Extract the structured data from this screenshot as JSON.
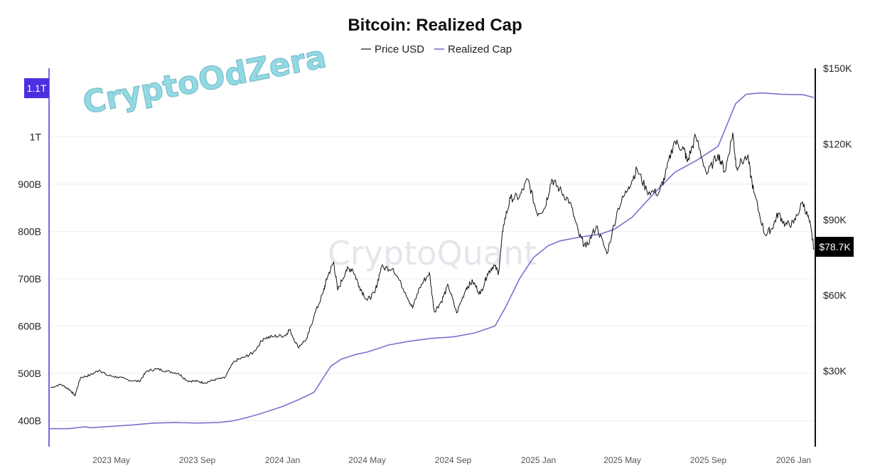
{
  "watermarks": {
    "corner": "CryptoOdZera",
    "center": "CryptoQuant"
  },
  "colors": {
    "price": "#111111",
    "realized_cap": "#7b70cf",
    "left_axis": "#7b68d9",
    "left_badge": "#4b2fe0",
    "right_badge": "#000000"
  },
  "chart_data": {
    "type": "line",
    "title": "Bitcoin: Realized Cap",
    "legend": {
      "placement": "top-center",
      "entries": [
        "Price USD",
        "Realized Cap"
      ]
    },
    "x_tick_labels": [
      "2023 May",
      "2023 Sep",
      "2024 Jan",
      "2024 May",
      "2024 Sep",
      "2025 Jan",
      "2025 May",
      "2025 Sep",
      "2026 Jan"
    ],
    "x_tick_dates": [
      "2023-05-01",
      "2023-09-01",
      "2024-01-01",
      "2024-05-01",
      "2024-09-01",
      "2025-01-01",
      "2025-05-01",
      "2025-09-01",
      "2026-01-01"
    ],
    "x_range": [
      "2023-02-01",
      "2026-02-01"
    ],
    "left_axis": {
      "series": "Realized Cap",
      "range": [
        345,
        1145
      ],
      "unit": "USD billions",
      "ticks": [
        400,
        500,
        600,
        700,
        800,
        900,
        1000
      ],
      "tick_labels": [
        "400B",
        "500B",
        "600B",
        "700B",
        "800B",
        "900B",
        "1T"
      ],
      "current_value_label": "1.1T"
    },
    "right_axis": {
      "series": "Price USD",
      "range": [
        0,
        150000
      ],
      "ticks": [
        30000,
        60000,
        90000,
        120000,
        150000
      ],
      "tick_labels": [
        "$30K",
        "$60K",
        "$90K",
        "$120K",
        "$150K"
      ],
      "current_value_label": "$78.7K"
    },
    "grid": true,
    "series": [
      {
        "name": "Price USD",
        "axis": "right",
        "points": [
          [
            "2023-02-03",
            23400
          ],
          [
            "2023-02-18",
            24700
          ],
          [
            "2023-03-03",
            22500
          ],
          [
            "2023-03-10",
            20200
          ],
          [
            "2023-03-18",
            27400
          ],
          [
            "2023-04-01",
            28400
          ],
          [
            "2023-04-14",
            30400
          ],
          [
            "2023-04-25",
            28300
          ],
          [
            "2023-05-10",
            27600
          ],
          [
            "2023-05-25",
            26500
          ],
          [
            "2023-06-10",
            25800
          ],
          [
            "2023-06-21",
            30000
          ],
          [
            "2023-07-05",
            30800
          ],
          [
            "2023-07-20",
            29900
          ],
          [
            "2023-08-05",
            29100
          ],
          [
            "2023-08-18",
            26100
          ],
          [
            "2023-09-01",
            25900
          ],
          [
            "2023-09-12",
            25300
          ],
          [
            "2023-09-25",
            26500
          ],
          [
            "2023-10-10",
            27200
          ],
          [
            "2023-10-24",
            33900
          ],
          [
            "2023-11-08",
            35500
          ],
          [
            "2023-11-20",
            37300
          ],
          [
            "2023-12-05",
            43000
          ],
          [
            "2023-12-20",
            43700
          ],
          [
            "2024-01-05",
            44100
          ],
          [
            "2024-01-11",
            46500
          ],
          [
            "2024-01-23",
            39500
          ],
          [
            "2024-02-05",
            42800
          ],
          [
            "2024-02-15",
            51800
          ],
          [
            "2024-02-28",
            61000
          ],
          [
            "2024-03-05",
            67200
          ],
          [
            "2024-03-14",
            73100
          ],
          [
            "2024-03-20",
            62000
          ],
          [
            "2024-04-01",
            70000
          ],
          [
            "2024-04-10",
            70500
          ],
          [
            "2024-04-20",
            63500
          ],
          [
            "2024-05-01",
            58000
          ],
          [
            "2024-05-12",
            61000
          ],
          [
            "2024-05-21",
            71000
          ],
          [
            "2024-06-07",
            70700
          ],
          [
            "2024-06-25",
            61000
          ],
          [
            "2024-07-05",
            55000
          ],
          [
            "2024-07-15",
            63000
          ],
          [
            "2024-07-29",
            69000
          ],
          [
            "2024-08-05",
            53500
          ],
          [
            "2024-08-15",
            57500
          ],
          [
            "2024-08-25",
            64000
          ],
          [
            "2024-09-06",
            53000
          ],
          [
            "2024-09-20",
            63000
          ],
          [
            "2024-09-29",
            65500
          ],
          [
            "2024-10-10",
            60500
          ],
          [
            "2024-10-20",
            68500
          ],
          [
            "2024-10-29",
            72000
          ],
          [
            "2024-11-05",
            69000
          ],
          [
            "2024-11-12",
            88000
          ],
          [
            "2024-11-22",
            98500
          ],
          [
            "2024-12-05",
            99000
          ],
          [
            "2024-12-17",
            106000
          ],
          [
            "2024-12-30",
            92500
          ],
          [
            "2025-01-10",
            94500
          ],
          [
            "2025-01-20",
            106000
          ],
          [
            "2025-01-31",
            102000
          ],
          [
            "2025-02-15",
            97000
          ],
          [
            "2025-02-28",
            84000
          ],
          [
            "2025-03-10",
            79000
          ],
          [
            "2025-03-25",
            87500
          ],
          [
            "2025-04-09",
            76500
          ],
          [
            "2025-04-25",
            94500
          ],
          [
            "2025-05-10",
            103000
          ],
          [
            "2025-05-22",
            110000
          ],
          [
            "2025-06-05",
            101500
          ],
          [
            "2025-06-22",
            100500
          ],
          [
            "2025-07-01",
            107000
          ],
          [
            "2025-07-14",
            121000
          ],
          [
            "2025-07-28",
            118000
          ],
          [
            "2025-08-02",
            113000
          ],
          [
            "2025-08-14",
            123000
          ],
          [
            "2025-08-30",
            108000
          ],
          [
            "2025-09-15",
            116000
          ],
          [
            "2025-09-25",
            109000
          ],
          [
            "2025-10-06",
            124500
          ],
          [
            "2025-10-11",
            111000
          ],
          [
            "2025-10-27",
            115000
          ],
          [
            "2025-11-05",
            101000
          ],
          [
            "2025-11-21",
            84000
          ],
          [
            "2025-12-01",
            86500
          ],
          [
            "2025-12-10",
            92500
          ],
          [
            "2025-12-20",
            88000
          ],
          [
            "2026-01-01",
            88500
          ],
          [
            "2026-01-14",
            97000
          ],
          [
            "2026-01-24",
            89000
          ],
          [
            "2026-01-30",
            78700
          ]
        ]
      },
      {
        "name": "Realized Cap",
        "axis": "left",
        "points": [
          [
            "2023-02-01",
            383
          ],
          [
            "2023-03-01",
            383
          ],
          [
            "2023-03-25",
            387
          ],
          [
            "2023-04-01",
            385
          ],
          [
            "2023-05-01",
            388
          ],
          [
            "2023-06-01",
            391
          ],
          [
            "2023-07-01",
            395
          ],
          [
            "2023-08-01",
            396
          ],
          [
            "2023-09-01",
            395
          ],
          [
            "2023-10-01",
            396
          ],
          [
            "2023-10-20",
            399
          ],
          [
            "2023-11-10",
            406
          ],
          [
            "2023-12-01",
            415
          ],
          [
            "2024-01-01",
            430
          ],
          [
            "2024-01-25",
            445
          ],
          [
            "2024-02-15",
            460
          ],
          [
            "2024-02-28",
            490
          ],
          [
            "2024-03-10",
            515
          ],
          [
            "2024-03-25",
            530
          ],
          [
            "2024-04-15",
            540
          ],
          [
            "2024-05-01",
            545
          ],
          [
            "2024-06-01",
            560
          ],
          [
            "2024-07-01",
            568
          ],
          [
            "2024-08-01",
            574
          ],
          [
            "2024-09-01",
            577
          ],
          [
            "2024-10-01",
            585
          ],
          [
            "2024-10-31",
            600
          ],
          [
            "2024-11-15",
            640
          ],
          [
            "2024-12-05",
            700
          ],
          [
            "2024-12-25",
            745
          ],
          [
            "2025-01-15",
            770
          ],
          [
            "2025-02-01",
            780
          ],
          [
            "2025-03-01",
            788
          ],
          [
            "2025-04-01",
            795
          ],
          [
            "2025-04-20",
            805
          ],
          [
            "2025-05-15",
            830
          ],
          [
            "2025-06-15",
            880
          ],
          [
            "2025-07-15",
            925
          ],
          [
            "2025-08-15",
            950
          ],
          [
            "2025-09-15",
            980
          ],
          [
            "2025-10-10",
            1070
          ],
          [
            "2025-10-25",
            1090
          ],
          [
            "2025-11-15",
            1093
          ],
          [
            "2025-12-15",
            1090
          ],
          [
            "2026-01-15",
            1089
          ],
          [
            "2026-01-30",
            1083
          ]
        ]
      }
    ]
  }
}
